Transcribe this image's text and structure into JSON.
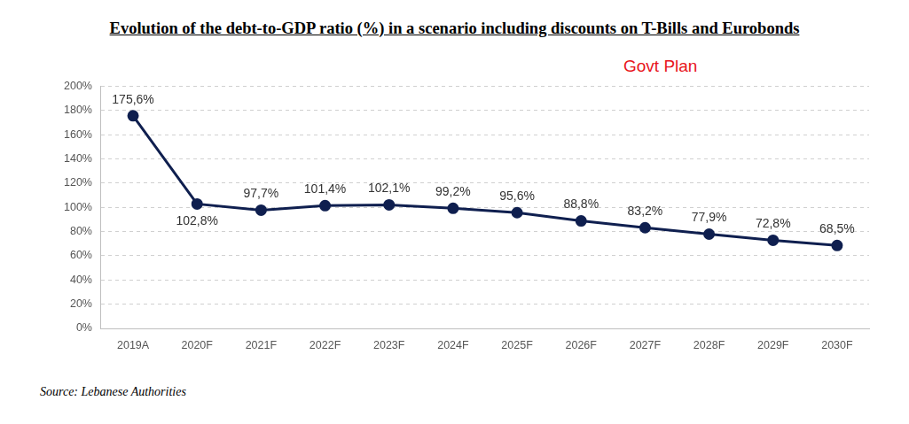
{
  "chart_data": {
    "type": "line",
    "title": "Evolution of the debt-to-GDP ratio (%) in a scenario including discounts on T-Bills and Eurobonds",
    "annotations": [
      "Govt Plan"
    ],
    "source": "Source: Lebanese Authorities",
    "categories": [
      "2019A",
      "2020F",
      "2021F",
      "2022F",
      "2023F",
      "2024F",
      "2025F",
      "2026F",
      "2027F",
      "2028F",
      "2029F",
      "2030F"
    ],
    "values": [
      175.6,
      102.8,
      97.7,
      101.4,
      102.1,
      99.2,
      95.6,
      88.8,
      83.2,
      77.9,
      72.8,
      68.5
    ],
    "value_labels": [
      "175,6%",
      "102,8%",
      "97,7%",
      "101,4%",
      "102,1%",
      "99,2%",
      "95,6%",
      "88,8%",
      "83,2%",
      "77,9%",
      "72,8%",
      "68,5%"
    ],
    "color": "#0f1f4f",
    "marker": "circle",
    "ylim": [
      0,
      200
    ],
    "yticks": [
      {
        "value": 0,
        "label": "0%"
      },
      {
        "value": 20,
        "label": "20%"
      },
      {
        "value": 40,
        "label": "40%"
      },
      {
        "value": 60,
        "label": "60%"
      },
      {
        "value": 80,
        "label": "80%"
      },
      {
        "value": 100,
        "label": "100%"
      },
      {
        "value": 120,
        "label": "120%"
      },
      {
        "value": 140,
        "label": "140%"
      },
      {
        "value": 160,
        "label": "160%"
      },
      {
        "value": 180,
        "label": "180%"
      },
      {
        "value": 200,
        "label": "200%"
      }
    ],
    "grid": true,
    "data_labels": true
  }
}
